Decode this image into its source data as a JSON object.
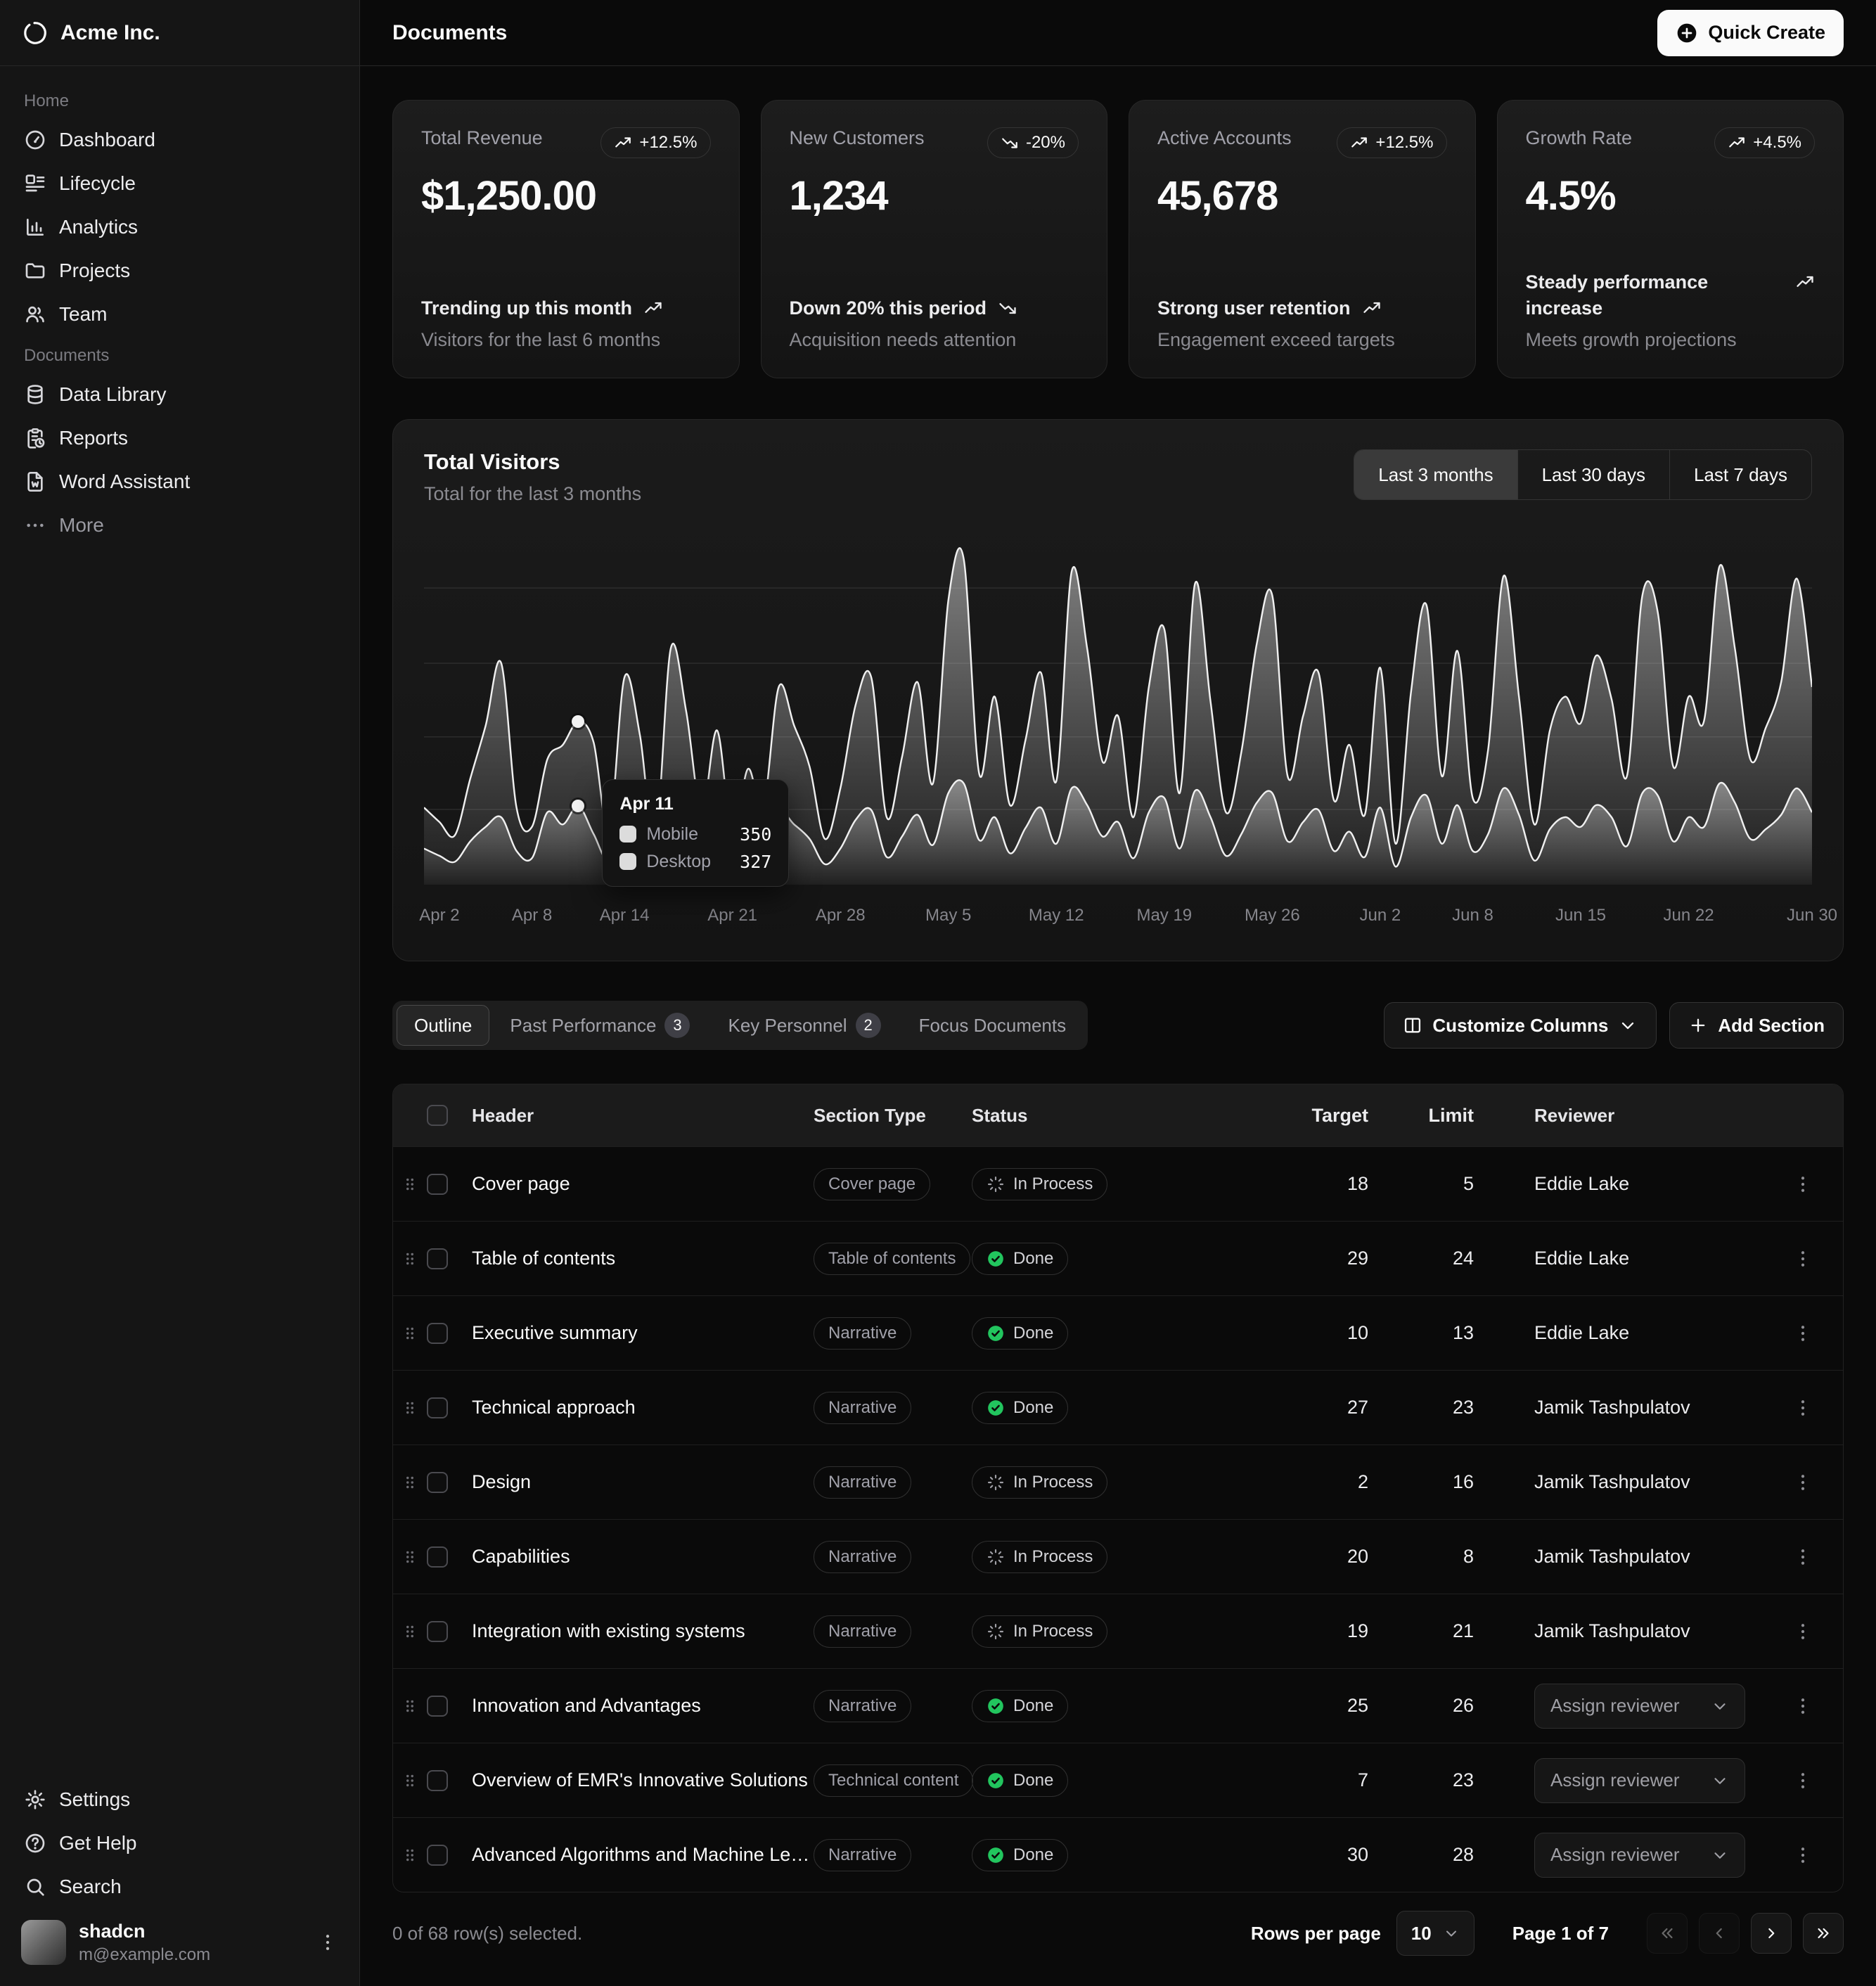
{
  "brand": {
    "name": "Acme Inc."
  },
  "page": {
    "title": "Documents"
  },
  "header": {
    "quick_create_label": "Quick Create"
  },
  "sidebar": {
    "groups": [
      {
        "label": "Home",
        "items": [
          {
            "icon": "dashboard",
            "label": "Dashboard"
          },
          {
            "icon": "lifecycle",
            "label": "Lifecycle"
          },
          {
            "icon": "analytics",
            "label": "Analytics"
          },
          {
            "icon": "folder",
            "label": "Projects"
          },
          {
            "icon": "team",
            "label": "Team"
          }
        ]
      },
      {
        "label": "Documents",
        "items": [
          {
            "icon": "database",
            "label": "Data Library"
          },
          {
            "icon": "reports",
            "label": "Reports"
          },
          {
            "icon": "word",
            "label": "Word Assistant"
          },
          {
            "icon": "more",
            "label": "More"
          }
        ]
      }
    ],
    "footer_items": [
      {
        "icon": "settings",
        "label": "Settings"
      },
      {
        "icon": "help",
        "label": "Get Help"
      },
      {
        "icon": "search",
        "label": "Search"
      }
    ],
    "user": {
      "name": "shadcn",
      "email": "m@example.com"
    }
  },
  "stat_cards": [
    {
      "title": "Total Revenue",
      "badge": "+12.5%",
      "trend": "up",
      "value": "$1,250.00",
      "line1": "Trending up this month",
      "line2": "Visitors for the last 6 months"
    },
    {
      "title": "New Customers",
      "badge": "-20%",
      "trend": "down",
      "value": "1,234",
      "line1": "Down 20% this period",
      "line2": "Acquisition needs attention"
    },
    {
      "title": "Active Accounts",
      "badge": "+12.5%",
      "trend": "up",
      "value": "45,678",
      "line1": "Strong user retention",
      "line2": "Engagement exceed targets"
    },
    {
      "title": "Growth Rate",
      "badge": "+4.5%",
      "trend": "up",
      "value": "4.5%",
      "line1": "Steady performance increase",
      "line2": "Meets growth projections"
    }
  ],
  "chart_card": {
    "title": "Total Visitors",
    "subtitle": "Total for the last 3 months",
    "ranges": [
      "Last 3 months",
      "Last 30 days",
      "Last 7 days"
    ],
    "active_range": "Last 3 months"
  },
  "chart_data": {
    "type": "area",
    "stacked": true,
    "title": "Total Visitors",
    "x_range": [
      "Apr 1",
      "Jun 30"
    ],
    "points": 91,
    "ylim": [
      0,
      1400
    ],
    "grid": "horizontal",
    "x_ticks": {
      "labels": [
        "Apr 2",
        "Apr 8",
        "Apr 14",
        "Apr 21",
        "Apr 28",
        "May 5",
        "May 12",
        "May 19",
        "May 26",
        "Jun 2",
        "Jun 8",
        "Jun 15",
        "Jun 22",
        "Jun 30"
      ],
      "indices": [
        1,
        7,
        13,
        20,
        27,
        34,
        41,
        48,
        55,
        62,
        68,
        75,
        82,
        90
      ]
    },
    "series": [
      {
        "name": "Desktop",
        "values": [
          150,
          120,
          95,
          180,
          240,
          280,
          140,
          110,
          300,
          250,
          327,
          210,
          100,
          290,
          230,
          80,
          320,
          270,
          130,
          240,
          90,
          180,
          130,
          300,
          250,
          190,
          85,
          150,
          270,
          310,
          115,
          200,
          290,
          165,
          380,
          420,
          185,
          280,
          130,
          235,
          320,
          170,
          400,
          330,
          200,
          260,
          110,
          300,
          360,
          150,
          390,
          280,
          120,
          210,
          340,
          380,
          180,
          260,
          310,
          140,
          220,
          115,
          320,
          75,
          280,
          370,
          170,
          330,
          140,
          210,
          400,
          290,
          100,
          230,
          280,
          240,
          330,
          280,
          160,
          380,
          370,
          180,
          280,
          240,
          420,
          340,
          190,
          230,
          290,
          400,
          300
        ]
      },
      {
        "name": "Mobile",
        "values": [
          170,
          140,
          110,
          260,
          420,
          640,
          180,
          130,
          220,
          330,
          350,
          380,
          120,
          570,
          390,
          100,
          660,
          450,
          170,
          400,
          110,
          300,
          190,
          520,
          410,
          300,
          105,
          250,
          480,
          550,
          165,
          330,
          550,
          255,
          800,
          930,
          275,
          500,
          200,
          365,
          560,
          260,
          900,
          650,
          310,
          440,
          170,
          520,
          700,
          230,
          860,
          480,
          180,
          340,
          660,
          820,
          270,
          440,
          570,
          210,
          360,
          175,
          580,
          95,
          520,
          790,
          280,
          640,
          220,
          350,
          880,
          490,
          150,
          410,
          500,
          430,
          620,
          490,
          290,
          820,
          760,
          310,
          500,
          440,
          900,
          640,
          330,
          420,
          550,
          870,
          520
        ]
      }
    ],
    "tooltip": {
      "date": "Apr 11",
      "index": 10,
      "rows": [
        {
          "label": "Mobile",
          "value": "350"
        },
        {
          "label": "Desktop",
          "value": "327"
        }
      ]
    }
  },
  "tabs": {
    "items": [
      {
        "label": "Outline",
        "active": true
      },
      {
        "label": "Past Performance",
        "badge": "3"
      },
      {
        "label": "Key Personnel",
        "badge": "2"
      },
      {
        "label": "Focus Documents"
      }
    ]
  },
  "table_actions": {
    "customize_label": "Customize Columns",
    "add_label": "Add Section"
  },
  "table": {
    "columns": [
      "Header",
      "Section Type",
      "Status",
      "Target",
      "Limit",
      "Reviewer"
    ],
    "assign_label": "Assign reviewer",
    "rows": [
      {
        "header": "Cover page",
        "type": "Cover page",
        "status": "In Process",
        "target": "18",
        "limit": "5",
        "reviewer": "Eddie Lake"
      },
      {
        "header": "Table of contents",
        "type": "Table of contents",
        "status": "Done",
        "target": "29",
        "limit": "24",
        "reviewer": "Eddie Lake"
      },
      {
        "header": "Executive summary",
        "type": "Narrative",
        "status": "Done",
        "target": "10",
        "limit": "13",
        "reviewer": "Eddie Lake"
      },
      {
        "header": "Technical approach",
        "type": "Narrative",
        "status": "Done",
        "target": "27",
        "limit": "23",
        "reviewer": "Jamik Tashpulatov"
      },
      {
        "header": "Design",
        "type": "Narrative",
        "status": "In Process",
        "target": "2",
        "limit": "16",
        "reviewer": "Jamik Tashpulatov"
      },
      {
        "header": "Capabilities",
        "type": "Narrative",
        "status": "In Process",
        "target": "20",
        "limit": "8",
        "reviewer": "Jamik Tashpulatov"
      },
      {
        "header": "Integration with existing systems",
        "type": "Narrative",
        "status": "In Process",
        "target": "19",
        "limit": "21",
        "reviewer": "Jamik Tashpulatov"
      },
      {
        "header": "Innovation and Advantages",
        "type": "Narrative",
        "status": "Done",
        "target": "25",
        "limit": "26",
        "reviewer": null
      },
      {
        "header": "Overview of EMR's Innovative Solutions",
        "type": "Technical content",
        "status": "Done",
        "target": "7",
        "limit": "23",
        "reviewer": null
      },
      {
        "header": "Advanced Algorithms and Machine Learning",
        "type": "Narrative",
        "status": "Done",
        "target": "30",
        "limit": "28",
        "reviewer": null
      }
    ]
  },
  "footer": {
    "selection": "0 of 68 row(s) selected.",
    "rows_per_page_label": "Rows per page",
    "rows_per_page": "10",
    "page_status": "Page 1 of 7"
  }
}
